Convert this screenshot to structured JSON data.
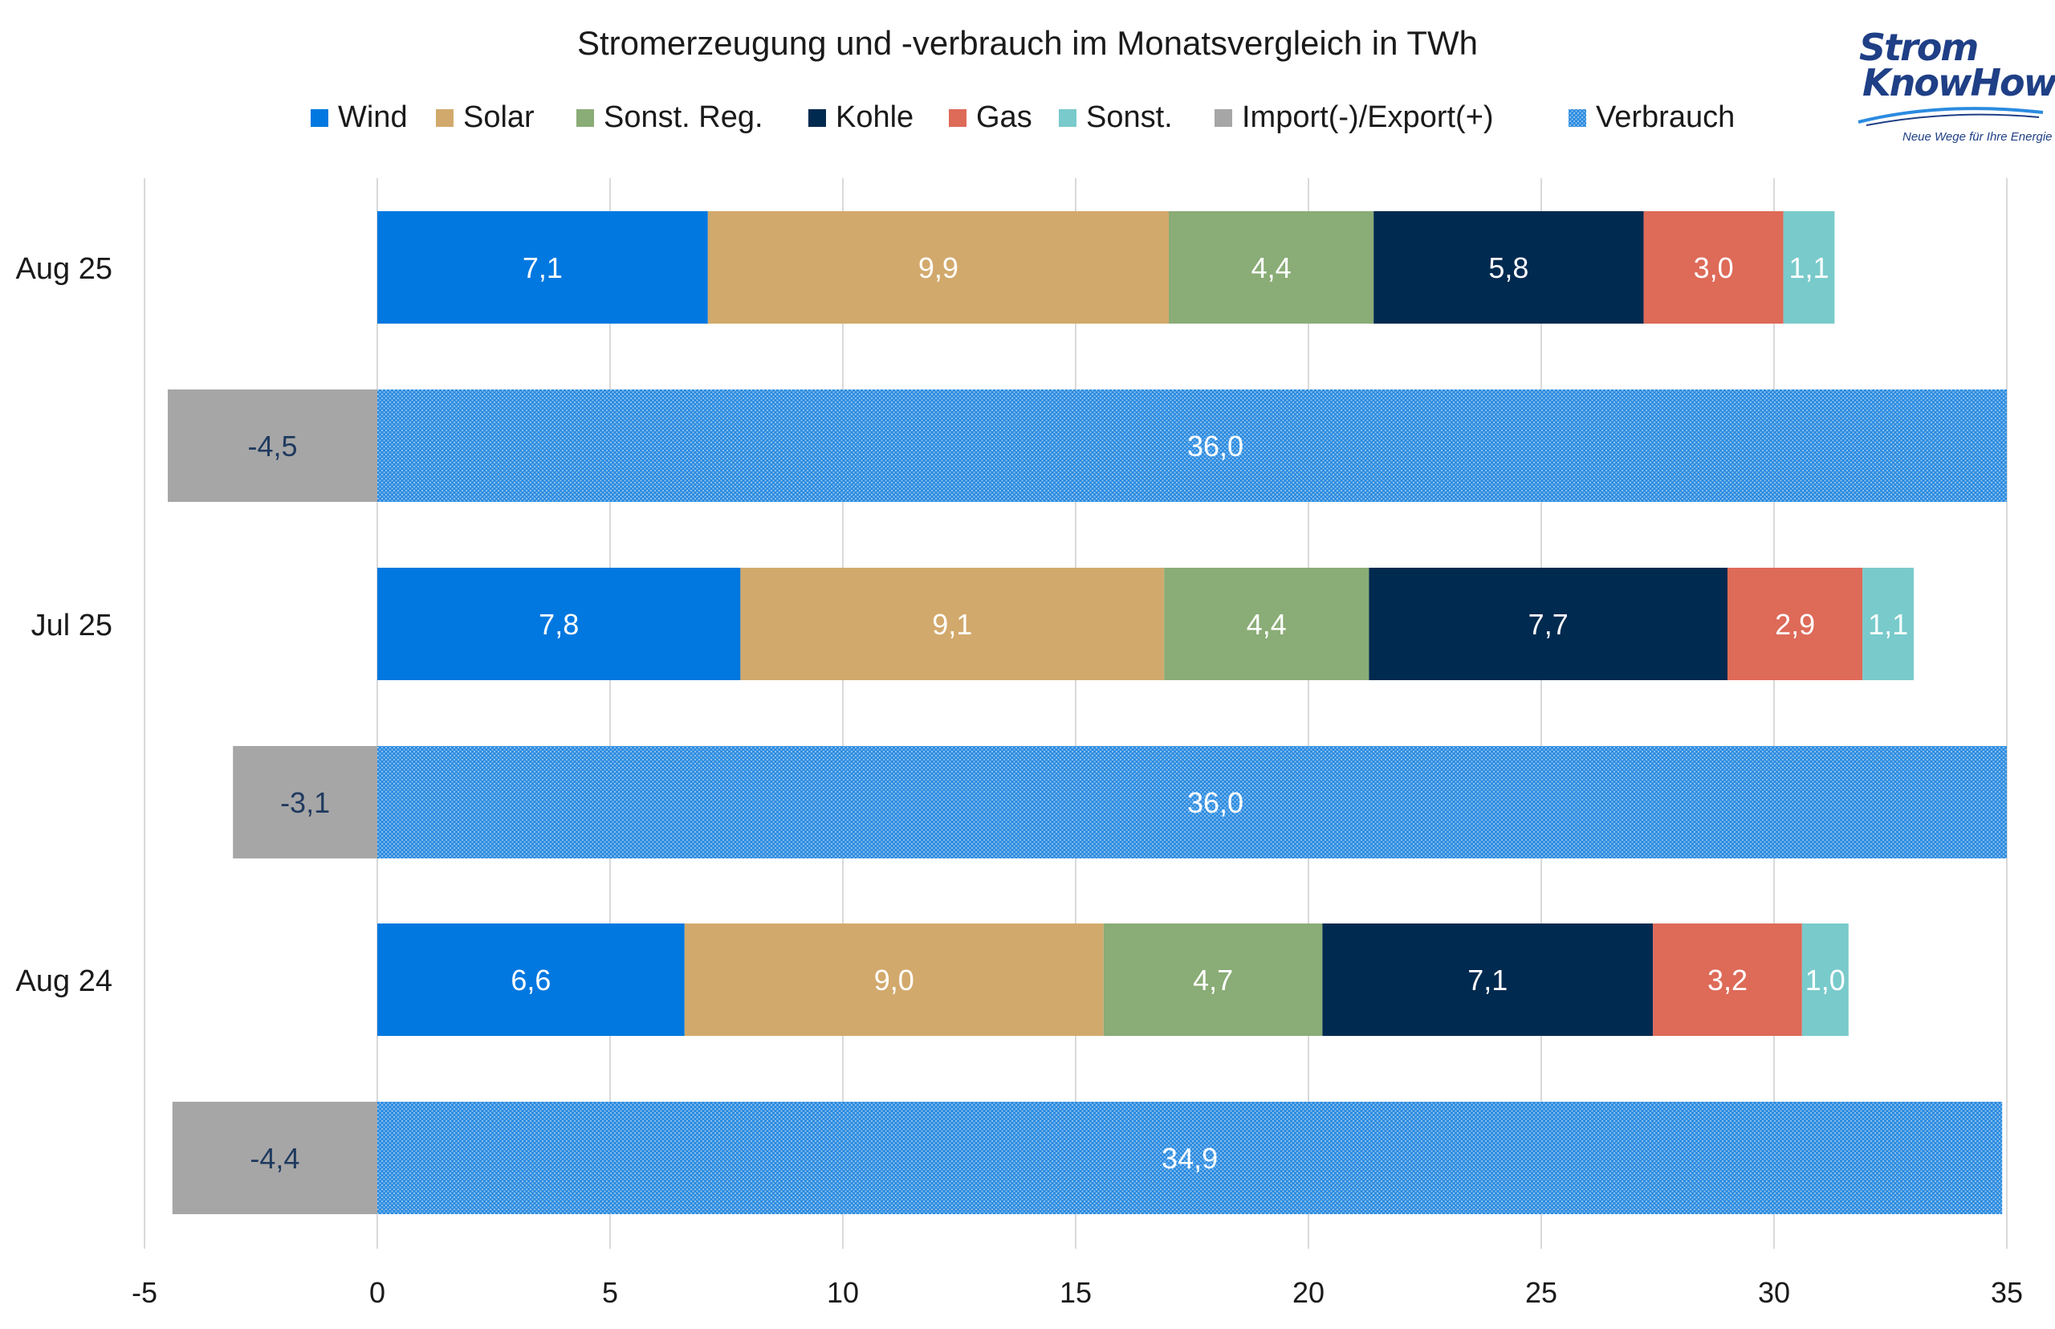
{
  "chart_data": {
    "type": "bar",
    "orientation": "horizontal",
    "stacked": true,
    "title": "Stromerzeugung und -verbrauch im Monatsvergleich in TWh",
    "xlim": [
      -5,
      35
    ],
    "xticks": [
      "-5",
      "0",
      "5",
      "10",
      "15",
      "20",
      "25",
      "30",
      "35"
    ],
    "xtick_values": [
      -5,
      0,
      5,
      10,
      15,
      20,
      25,
      30,
      35
    ],
    "grid": true,
    "legend_position": "top",
    "legend": [
      "Wind",
      "Solar",
      "Sonst. Reg.",
      "Kohle",
      "Gas",
      "Sonst.",
      "Import(-)/Export(+)",
      "Verbrauch"
    ],
    "colors": {
      "Wind": "#0078e0",
      "Solar": "#d2a96c",
      "Sonst. Reg.": "#8aac76",
      "Kohle": "#002a50",
      "Gas": "#de6a58",
      "Sonst.": "#79cacb",
      "Import(-)/Export(+)": "#a6a6a6",
      "Verbrauch": "#2b8be0"
    },
    "groups": [
      {
        "label": "Aug 25",
        "generation": [
          {
            "name": "Wind",
            "value": 7.1,
            "label": "7,1"
          },
          {
            "name": "Solar",
            "value": 9.9,
            "label": "9,9"
          },
          {
            "name": "Sonst. Reg.",
            "value": 4.4,
            "label": "4,4"
          },
          {
            "name": "Kohle",
            "value": 5.8,
            "label": "5,8"
          },
          {
            "name": "Gas",
            "value": 3.0,
            "label": "3,0"
          },
          {
            "name": "Sonst.",
            "value": 1.1,
            "label": "1,1"
          }
        ],
        "import_export": {
          "value": -4.5,
          "label": "-4,5"
        },
        "consumption": {
          "value": 36.0,
          "label": "36,0"
        }
      },
      {
        "label": "Jul 25",
        "generation": [
          {
            "name": "Wind",
            "value": 7.8,
            "label": "7,8"
          },
          {
            "name": "Solar",
            "value": 9.1,
            "label": "9,1"
          },
          {
            "name": "Sonst. Reg.",
            "value": 4.4,
            "label": "4,4"
          },
          {
            "name": "Kohle",
            "value": 7.7,
            "label": "7,7"
          },
          {
            "name": "Gas",
            "value": 2.9,
            "label": "2,9"
          },
          {
            "name": "Sonst.",
            "value": 1.1,
            "label": "1,1"
          }
        ],
        "import_export": {
          "value": -3.1,
          "label": "-3,1"
        },
        "consumption": {
          "value": 36.0,
          "label": "36,0"
        }
      },
      {
        "label": "Aug 24",
        "generation": [
          {
            "name": "Wind",
            "value": 6.6,
            "label": "6,6"
          },
          {
            "name": "Solar",
            "value": 9.0,
            "label": "9,0"
          },
          {
            "name": "Sonst. Reg.",
            "value": 4.7,
            "label": "4,7"
          },
          {
            "name": "Kohle",
            "value": 7.1,
            "label": "7,1"
          },
          {
            "name": "Gas",
            "value": 3.2,
            "label": "3,2"
          },
          {
            "name": "Sonst.",
            "value": 1.0,
            "label": "1,0"
          }
        ],
        "import_export": {
          "value": -4.4,
          "label": "-4,4"
        },
        "consumption": {
          "value": 34.9,
          "label": "34,9"
        }
      }
    ]
  },
  "logo": {
    "line1": "Strom",
    "line2": "KnowHow",
    "tagline": "Neue Wege für Ihre Energie"
  }
}
